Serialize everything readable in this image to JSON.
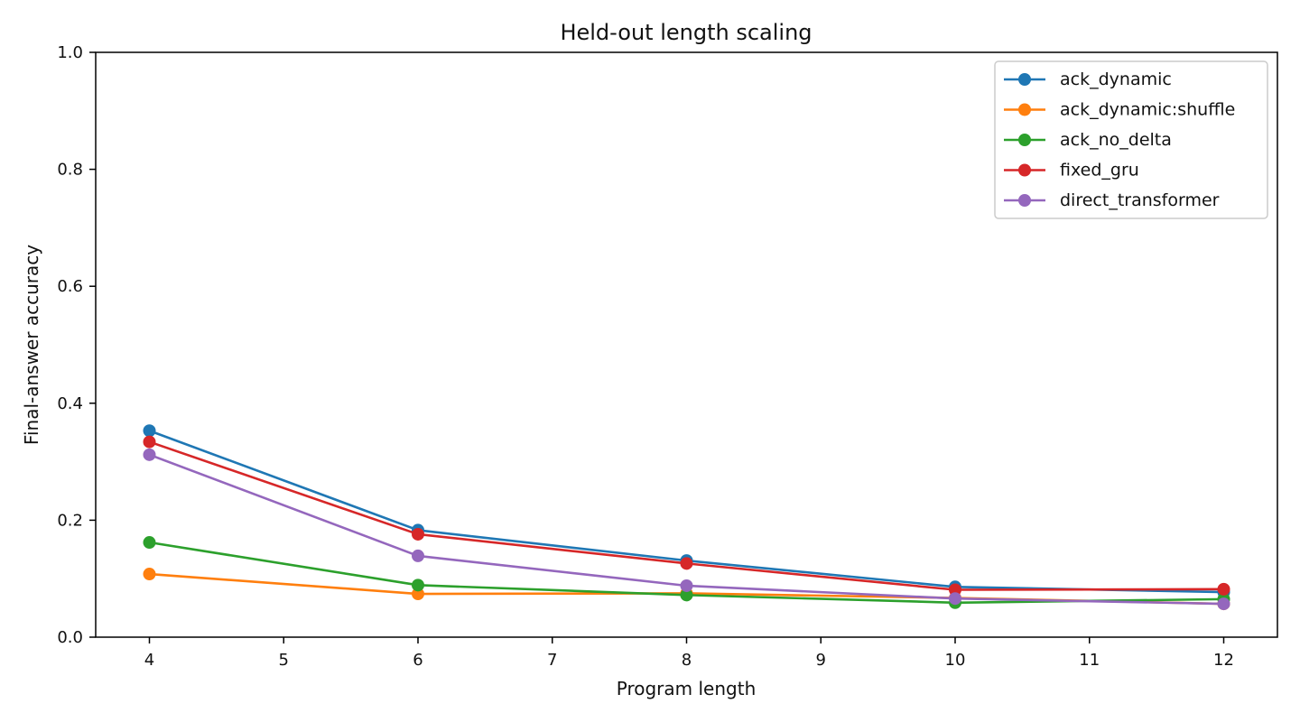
{
  "chart_data": {
    "type": "line",
    "title": "Held-out length scaling",
    "xlabel": "Program length",
    "ylabel": "Final-answer accuracy",
    "x": [
      4,
      6,
      8,
      10,
      12
    ],
    "xlim": [
      3.6,
      12.4
    ],
    "ylim": [
      0,
      1
    ],
    "xticks": [
      4,
      5,
      6,
      7,
      8,
      9,
      10,
      11,
      12
    ],
    "yticks": [
      0.0,
      0.2,
      0.4,
      0.6,
      0.8,
      1.0
    ],
    "xtick_labels": [
      "4",
      "5",
      "6",
      "7",
      "8",
      "9",
      "10",
      "11",
      "12"
    ],
    "ytick_labels": [
      "0.0",
      "0.2",
      "0.4",
      "0.6",
      "0.8",
      "1.0"
    ],
    "grid": false,
    "legend_position": "top-right",
    "series": [
      {
        "name": "ack_dynamic",
        "color": "#1f77b4",
        "values": [
          0.353,
          0.183,
          0.131,
          0.086,
          0.077
        ]
      },
      {
        "name": "ack_dynamic:shuffle",
        "color": "#ff7f0e",
        "values": [
          0.108,
          0.074,
          0.075,
          0.067,
          0.057
        ]
      },
      {
        "name": "ack_no_delta",
        "color": "#2ca02c",
        "values": [
          0.162,
          0.089,
          0.072,
          0.059,
          0.065
        ]
      },
      {
        "name": "fixed_gru",
        "color": "#d62728",
        "values": [
          0.334,
          0.176,
          0.126,
          0.081,
          0.082
        ]
      },
      {
        "name": "direct_transformer",
        "color": "#9467bd",
        "values": [
          0.312,
          0.139,
          0.088,
          0.066,
          0.057
        ]
      }
    ]
  }
}
